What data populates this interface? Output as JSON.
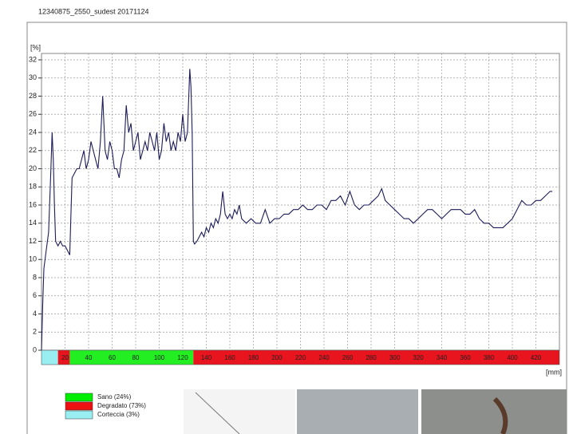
{
  "chart_data": {
    "type": "line",
    "title": "12340875_2550_sudest   20171124",
    "y_label": "[%]",
    "x_label": "[mm]",
    "xlim": [
      0,
      440
    ],
    "ylim": [
      0,
      32
    ],
    "xticks": [
      20,
      40,
      60,
      80,
      100,
      120,
      140,
      160,
      180,
      200,
      220,
      240,
      260,
      280,
      300,
      320,
      340,
      360,
      380,
      400,
      420
    ],
    "yticks": [
      0,
      2,
      4,
      6,
      8,
      10,
      12,
      14,
      16,
      18,
      20,
      22,
      24,
      26,
      28,
      30,
      32
    ],
    "grid": true,
    "series": [
      {
        "color": "#1c1c5a",
        "x": [
          0,
          1,
          2,
          4,
          6,
          8,
          9,
          10,
          11,
          12,
          14,
          16,
          18,
          20,
          22,
          24,
          25,
          26,
          28,
          30,
          32,
          34,
          36,
          38,
          40,
          42,
          44,
          46,
          48,
          50,
          52,
          54,
          56,
          58,
          60,
          62,
          64,
          66,
          68,
          70,
          72,
          74,
          76,
          78,
          80,
          82,
          84,
          86,
          88,
          90,
          92,
          94,
          96,
          98,
          100,
          102,
          104,
          106,
          108,
          110,
          112,
          114,
          116,
          118,
          120,
          122,
          124,
          126,
          127,
          128,
          129,
          130,
          132,
          134,
          136,
          138,
          140,
          142,
          144,
          146,
          148,
          150,
          152,
          154,
          156,
          158,
          160,
          162,
          164,
          166,
          168,
          170,
          174,
          178,
          182,
          186,
          190,
          194,
          198,
          202,
          206,
          210,
          214,
          218,
          222,
          226,
          230,
          234,
          238,
          242,
          246,
          250,
          254,
          258,
          262,
          266,
          270,
          274,
          278,
          282,
          286,
          289,
          292,
          296,
          300,
          304,
          308,
          312,
          316,
          320,
          324,
          328,
          332,
          336,
          340,
          344,
          348,
          352,
          356,
          360,
          364,
          368,
          372,
          376,
          380,
          384,
          388,
          392,
          396,
          400,
          404,
          408,
          412,
          416,
          420,
          424,
          428,
          432,
          434
        ],
        "values": [
          0,
          5,
          9,
          11,
          13,
          20,
          24,
          21,
          16,
          12,
          11.5,
          12,
          11.5,
          11.5,
          11,
          10.5,
          15,
          19,
          19.5,
          20,
          20,
          21,
          22,
          20,
          21,
          23,
          22,
          21,
          20,
          23,
          28,
          22,
          21,
          23,
          22,
          20,
          20,
          19,
          21,
          22,
          27,
          24,
          25,
          22,
          23,
          24,
          21,
          22,
          23,
          22,
          24,
          23,
          22,
          24,
          21,
          22,
          25,
          23,
          24,
          22,
          23,
          22,
          24,
          23,
          26,
          23,
          24,
          31,
          29,
          24,
          12,
          11.7,
          12,
          12.5,
          13,
          12.5,
          13.5,
          13,
          14,
          13.5,
          14.5,
          14,
          15,
          17.5,
          15,
          14.5,
          15,
          14.5,
          15.5,
          15,
          16,
          14.5,
          14,
          14.5,
          14,
          14,
          15.5,
          14,
          14.5,
          14.5,
          15,
          15,
          15.5,
          15.5,
          16,
          15.5,
          15.5,
          16,
          16,
          15.5,
          16.5,
          16.5,
          17,
          16,
          17.5,
          16,
          15.5,
          16,
          16,
          16.5,
          17,
          17.8,
          16.5,
          16,
          15.5,
          15,
          14.5,
          14.5,
          14,
          14.5,
          15,
          15.5,
          15.5,
          15,
          14.5,
          15,
          15.5,
          15.5,
          15.5,
          15,
          15,
          15.5,
          14.5,
          14,
          14,
          13.5,
          13.5,
          13.5,
          14,
          14.5,
          15.5,
          16.5,
          16,
          16,
          16.5,
          16.5,
          17,
          17.5,
          17.5
        ]
      }
    ],
    "zones": [
      {
        "start": 0,
        "end": 14,
        "color": "#99eef2"
      },
      {
        "start": 14,
        "end": 24,
        "color": "#e8141e"
      },
      {
        "start": 24,
        "end": 129,
        "color": "#22ee22"
      },
      {
        "start": 129,
        "end": 440,
        "color": "#e8141e"
      }
    ],
    "legend": [
      {
        "label": "Sano (24%)",
        "color": "#00ee00"
      },
      {
        "label": "Degradato (73%)",
        "color": "#ee1111"
      },
      {
        "label": "Corteccia (3%)",
        "color": "#99eef2"
      }
    ]
  }
}
